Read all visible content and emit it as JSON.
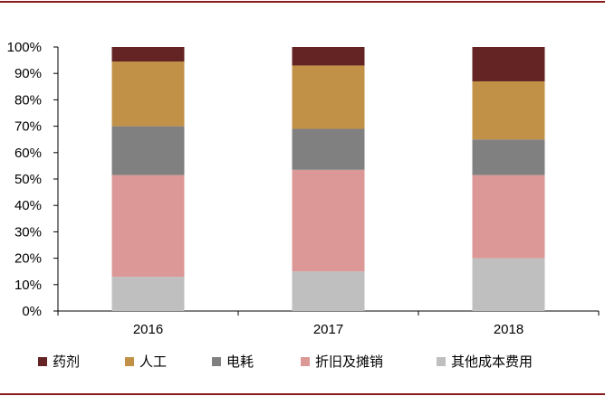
{
  "chart_data": {
    "type": "bar",
    "stacked": true,
    "categories": [
      "2016",
      "2017",
      "2018"
    ],
    "series": [
      {
        "name": "其他成本费用",
        "color": "#bfbfbf",
        "values": [
          13,
          15,
          20
        ]
      },
      {
        "name": "折旧及摊销",
        "color": "#dc9897",
        "values": [
          38.5,
          38.5,
          31.5
        ]
      },
      {
        "name": "电耗",
        "color": "#808080",
        "values": [
          18.5,
          15.5,
          13.5
        ]
      },
      {
        "name": "人工",
        "color": "#c19148",
        "values": [
          24.5,
          24,
          22
        ]
      },
      {
        "name": "药剂",
        "color": "#632423",
        "values": [
          5.5,
          7,
          13
        ]
      }
    ],
    "legend_order": [
      "药剂",
      "人工",
      "电耗",
      "折旧及摊销",
      "其他成本费用"
    ],
    "y_ticks": [
      "0%",
      "10%",
      "20%",
      "30%",
      "40%",
      "50%",
      "60%",
      "70%",
      "80%",
      "90%",
      "100%"
    ],
    "ylim": [
      0,
      100
    ],
    "grid": false,
    "legend_position": "bottom",
    "frame_color": "#8b1a1a"
  }
}
